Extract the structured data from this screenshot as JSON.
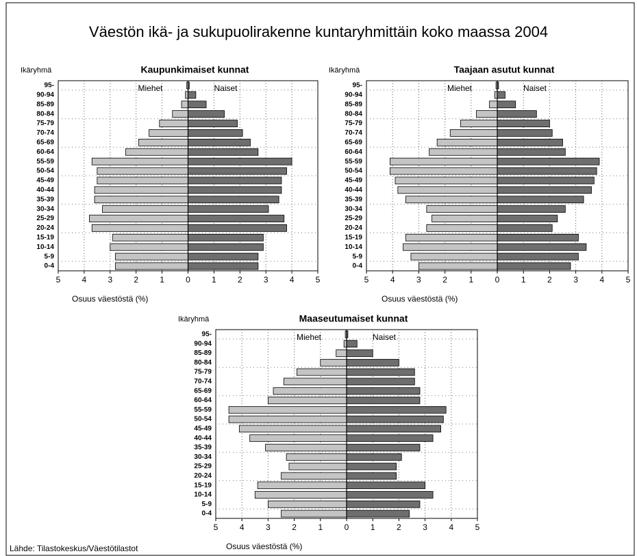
{
  "title": "Väestön ikä- ja sukupuolirakenne kuntaryhmittäin koko maassa 2004",
  "source": "Lähde: Tilastokeskus/Väestötilastot",
  "chart_data": [
    {
      "type": "bar",
      "horizontal": true,
      "title": "Kaupunkimaiset kunnat",
      "ylabel": "Ikäryhmä",
      "xlabel": "Osuus väestöstä (%)",
      "categories": [
        "95-",
        "90-94",
        "85-89",
        "80-84",
        "75-79",
        "70-74",
        "65-69",
        "60-64",
        "55-59",
        "50-54",
        "45-49",
        "40-44",
        "35-39",
        "30-34",
        "25-29",
        "20-24",
        "15-19",
        "10-14",
        "5-9",
        "0-4"
      ],
      "series": [
        {
          "name": "Miehet",
          "color": "#c4c4c4",
          "values": [
            -0.05,
            -0.1,
            -0.25,
            -0.6,
            -1.1,
            -1.5,
            -1.9,
            -2.4,
            -3.7,
            -3.5,
            -3.5,
            -3.6,
            -3.6,
            -3.3,
            -3.8,
            -3.7,
            -2.9,
            -3.0,
            -2.8,
            -2.8
          ]
        },
        {
          "name": "Naiset",
          "color": "#6e6e6e",
          "values": [
            0.05,
            0.3,
            0.7,
            1.4,
            1.9,
            2.1,
            2.4,
            2.7,
            4.0,
            3.8,
            3.6,
            3.6,
            3.5,
            3.1,
            3.7,
            3.8,
            2.9,
            2.9,
            2.7,
            2.7
          ]
        }
      ],
      "xlim": [
        -5,
        5
      ],
      "xticks": [
        {
          "value": -5,
          "label": "5"
        },
        {
          "value": -4,
          "label": "4"
        },
        {
          "value": -3,
          "label": "3"
        },
        {
          "value": -2,
          "label": "2"
        },
        {
          "value": -1,
          "label": "1"
        },
        0,
        1,
        2,
        3,
        4,
        5
      ],
      "grid": true
    },
    {
      "type": "bar",
      "horizontal": true,
      "title": "Taajaan asutut kunnat",
      "ylabel": "Ikäryhmä",
      "xlabel": "Osuus väestöstä (%)",
      "categories": [
        "95-",
        "90-94",
        "85-89",
        "80-84",
        "75-79",
        "70-74",
        "65-69",
        "60-64",
        "55-59",
        "50-54",
        "45-49",
        "40-44",
        "35-39",
        "30-34",
        "25-29",
        "20-24",
        "15-19",
        "10-14",
        "5-9",
        "0-4"
      ],
      "series": [
        {
          "name": "Miehet",
          "color": "#c4c4c4",
          "values": [
            -0.05,
            -0.1,
            -0.3,
            -0.8,
            -1.4,
            -1.8,
            -2.3,
            -2.6,
            -4.1,
            -4.1,
            -3.9,
            -3.8,
            -3.5,
            -2.7,
            -2.5,
            -2.7,
            -3.5,
            -3.6,
            -3.3,
            -3.0
          ]
        },
        {
          "name": "Naiset",
          "color": "#6e6e6e",
          "values": [
            0.05,
            0.3,
            0.7,
            1.5,
            2.0,
            2.1,
            2.5,
            2.6,
            3.9,
            3.8,
            3.7,
            3.6,
            3.3,
            2.6,
            2.3,
            2.1,
            3.1,
            3.4,
            3.1,
            2.8
          ]
        }
      ],
      "xlim": [
        -5,
        5
      ],
      "xticks": [
        {
          "value": -5,
          "label": "5"
        },
        {
          "value": -4,
          "label": "4"
        },
        {
          "value": -3,
          "label": "3"
        },
        {
          "value": -2,
          "label": "2"
        },
        {
          "value": -1,
          "label": "1"
        },
        0,
        1,
        2,
        3,
        4,
        5
      ],
      "grid": true
    },
    {
      "type": "bar",
      "horizontal": true,
      "title": "Maaseutumaiset kunnat",
      "ylabel": "Ikäryhmä",
      "xlabel": "Osuus väestöstä (%)",
      "categories": [
        "95-",
        "90-94",
        "85-89",
        "80-84",
        "75-79",
        "70-74",
        "65-69",
        "60-64",
        "55-59",
        "50-54",
        "45-49",
        "40-44",
        "35-39",
        "30-34",
        "25-29",
        "20-24",
        "15-19",
        "10-14",
        "5-9",
        "0-4"
      ],
      "series": [
        {
          "name": "Miehet",
          "color": "#c4c4c4",
          "values": [
            -0.05,
            -0.1,
            -0.4,
            -1.0,
            -1.9,
            -2.4,
            -2.8,
            -3.0,
            -4.5,
            -4.5,
            -4.1,
            -3.7,
            -3.1,
            -2.3,
            -2.2,
            -2.5,
            -3.4,
            -3.5,
            -3.0,
            -2.5
          ]
        },
        {
          "name": "Naiset",
          "color": "#6e6e6e",
          "values": [
            0.05,
            0.4,
            1.0,
            2.0,
            2.6,
            2.6,
            2.8,
            2.8,
            3.8,
            3.7,
            3.6,
            3.3,
            2.8,
            2.1,
            1.9,
            1.9,
            3.0,
            3.3,
            2.8,
            2.4
          ]
        }
      ],
      "xlim": [
        -5,
        5
      ],
      "xticks": [
        {
          "value": -5,
          "label": "5"
        },
        {
          "value": -4,
          "label": "4"
        },
        {
          "value": -3,
          "label": "3"
        },
        {
          "value": -2,
          "label": "2"
        },
        {
          "value": -1,
          "label": "1"
        },
        0,
        1,
        2,
        3,
        4,
        5
      ],
      "grid": true
    }
  ]
}
